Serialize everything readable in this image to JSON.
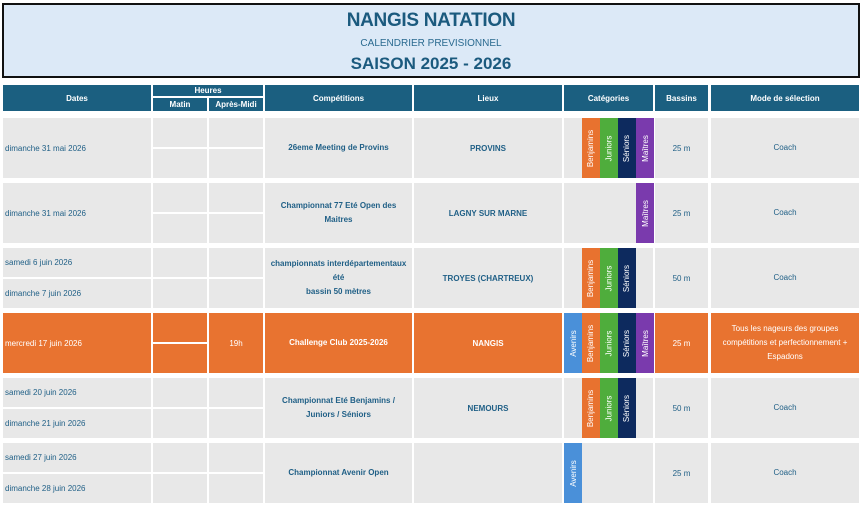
{
  "header": {
    "title": "NANGIS NATATION",
    "subtitle": "CALENDRIER PREVISIONNEL",
    "season": "SAISON 2025 - 2026"
  },
  "columns": {
    "dates": "Dates",
    "heures": "Heures",
    "matin": "Matin",
    "apres_midi": "Après-Midi",
    "competitions": "Compétitions",
    "lieux": "Lieux",
    "categories": "Catégories",
    "bassins": "Bassins",
    "mode": "Mode de sélection"
  },
  "category_colors": {
    "Avenirs": "#4a90d9",
    "Benjamins": "#e8722f",
    "Juniors": "#4fad3c",
    "Séniors": "#0d2a5e",
    "Maîtres": "#7a3aad"
  },
  "rows": [
    {
      "dates": [
        "dimanche 31 mai 2026"
      ],
      "matin": "",
      "apres_midi": "",
      "competition": "26eme Meeting de Provins",
      "lieu": "PROVINS",
      "categories": [
        "Benjamins",
        "Juniors",
        "Séniors",
        "Maîtres"
      ],
      "bassin": "25 m",
      "mode": "Coach",
      "highlight": false
    },
    {
      "dates": [
        "dimanche 31 mai 2026"
      ],
      "matin": "",
      "apres_midi": "",
      "competition": "Championnat 77 Eté Open des Maitres",
      "lieu": "LAGNY SUR MARNE",
      "categories": [
        "Maîtres"
      ],
      "bassin": "25 m",
      "mode": "Coach",
      "highlight": false
    },
    {
      "dates": [
        "samedi 6 juin 2026",
        "dimanche 7 juin 2026"
      ],
      "matin": "",
      "apres_midi": "",
      "competition": "championnats interdépartementaux été\nbassin 50 mètres",
      "lieu": "TROYES (CHARTREUX)",
      "categories": [
        "Benjamins",
        "Juniors",
        "Séniors"
      ],
      "bassin": "50 m",
      "mode": "Coach",
      "highlight": false
    },
    {
      "dates": [
        "mercredi 17 juin 2026"
      ],
      "matin": "",
      "apres_midi": "19h",
      "competition": "Challenge Club 2025-2026",
      "lieu": "NANGIS",
      "categories": [
        "Avenirs",
        "Benjamins",
        "Juniors",
        "Séniors",
        "Maîtres"
      ],
      "bassin": "25 m",
      "mode": "Tous les nageurs des groupes compétitions et perfectionnement + Espadons",
      "highlight": true
    },
    {
      "dates": [
        "samedi 20 juin 2026",
        "dimanche 21 juin 2026"
      ],
      "matin": "",
      "apres_midi": "",
      "competition": "Championnat Eté Benjamins / Juniors / Séniors",
      "lieu": "NEMOURS",
      "categories": [
        "Benjamins",
        "Juniors",
        "Séniors"
      ],
      "bassin": "50 m",
      "mode": "Coach",
      "highlight": false
    },
    {
      "dates": [
        "samedi 27 juin 2026",
        "dimanche 28 juin 2026"
      ],
      "matin": "",
      "apres_midi": "",
      "competition": "Championnat Avenir Open",
      "lieu": "",
      "categories": [
        "Avenirs"
      ],
      "bassin": "25 m",
      "mode": "Coach",
      "highlight": false
    }
  ]
}
